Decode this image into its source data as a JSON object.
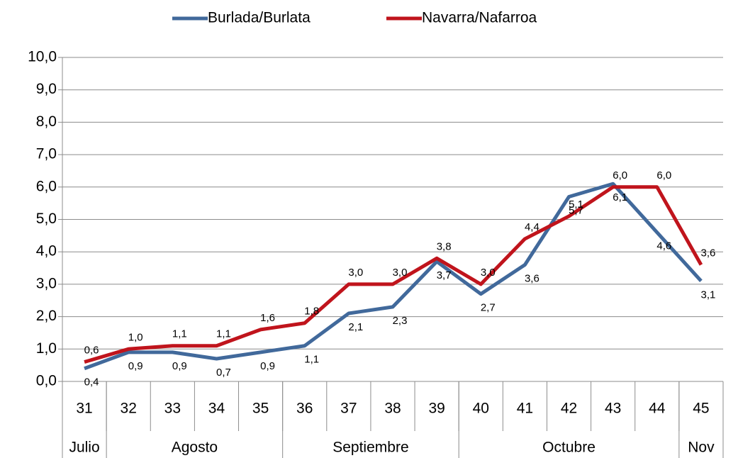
{
  "chart_data": {
    "type": "line",
    "categories": [
      "31",
      "32",
      "33",
      "34",
      "35",
      "36",
      "37",
      "38",
      "39",
      "40",
      "41",
      "42",
      "43",
      "44",
      "45"
    ],
    "months": [
      {
        "name": "Julio",
        "count": 1
      },
      {
        "name": "Agosto",
        "count": 4
      },
      {
        "name": "Septiembre",
        "count": 4
      },
      {
        "name": "Octubre",
        "count": 5
      },
      {
        "name": "Nov",
        "count": 1
      }
    ],
    "series": [
      {
        "name": "Burlada/Burlata",
        "color": "#41699b",
        "values": [
          0.4,
          0.9,
          0.9,
          0.7,
          0.9,
          1.1,
          2.1,
          2.3,
          3.7,
          2.7,
          3.6,
          5.7,
          6.1,
          4.6,
          3.1
        ],
        "value_labels": [
          "0,4",
          "0,9",
          "0,9",
          "0,7",
          "0,9",
          "1,1",
          "2,1",
          "2,3",
          "3,7",
          "2,7",
          "3,6",
          "5,7",
          "6,1",
          "4,6",
          "3,1"
        ]
      },
      {
        "name": "Navarra/Nafarroa",
        "color": "#c0141c",
        "values": [
          0.6,
          1.0,
          1.1,
          1.1,
          1.6,
          1.8,
          3.0,
          3.0,
          3.8,
          3.0,
          4.4,
          5.1,
          6.0,
          6.0,
          3.6
        ],
        "value_labels": [
          "0,6",
          "1,0",
          "1,1",
          "1,1",
          "1,6",
          "1,8",
          "3,0",
          "3,0",
          "3,8",
          "3,0",
          "4,4",
          "5,1",
          "6,0",
          "6,0",
          "3,6"
        ]
      }
    ],
    "ylim": [
      0,
      10
    ],
    "yticks": [
      {
        "value": 0,
        "label": "0,0"
      },
      {
        "value": 1,
        "label": "1,0"
      },
      {
        "value": 2,
        "label": "2,0"
      },
      {
        "value": 3,
        "label": "3,0"
      },
      {
        "value": 4,
        "label": "4,0"
      },
      {
        "value": 5,
        "label": "5,0"
      },
      {
        "value": 6,
        "label": "6,0"
      },
      {
        "value": 7,
        "label": "7,0"
      },
      {
        "value": 8,
        "label": "8,0"
      },
      {
        "value": 9,
        "label": "9,0"
      },
      {
        "value": 10,
        "label": "10,0"
      }
    ],
    "grid": true,
    "legend": "top"
  }
}
